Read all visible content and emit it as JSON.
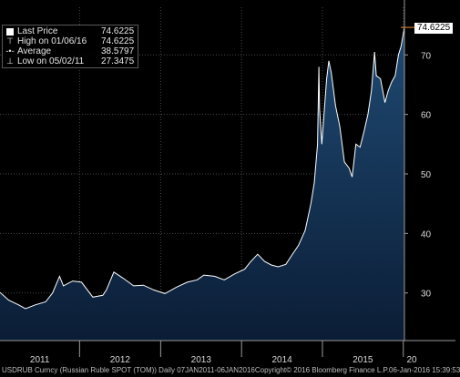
{
  "chart_data": {
    "type": "area",
    "xlim": [
      "2011-01-07",
      "2016-01-06"
    ],
    "ylim": [
      22,
      78
    ],
    "y_ticks": [
      30,
      40,
      50,
      60,
      70
    ],
    "x_tick_labels": [
      "2011",
      "2012",
      "2013",
      "2014",
      "2015",
      "20"
    ],
    "grid": true,
    "colors": {
      "fill_top": "#1f4a73",
      "fill_bottom": "#0b1d36",
      "line": "#ffffff",
      "last_price": "#f28c28",
      "grid": "#4a4a4a"
    },
    "series": [
      {
        "name": "Last Price",
        "x": [
          "2011-01-07",
          "2011-02-15",
          "2011-04-01",
          "2011-05-02",
          "2011-06-15",
          "2011-08-01",
          "2011-09-01",
          "2011-10-03",
          "2011-10-20",
          "2011-12-01",
          "2012-01-10",
          "2012-03-01",
          "2012-04-15",
          "2012-05-01",
          "2012-06-04",
          "2012-07-15",
          "2012-09-01",
          "2012-10-15",
          "2012-12-01",
          "2013-01-20",
          "2013-03-15",
          "2013-05-01",
          "2013-06-15",
          "2013-07-15",
          "2013-09-01",
          "2013-10-15",
          "2013-12-01",
          "2014-01-15",
          "2014-02-10",
          "2014-03-15",
          "2014-04-15",
          "2014-05-15",
          "2014-06-15",
          "2014-07-20",
          "2014-08-15",
          "2014-09-15",
          "2014-10-15",
          "2014-11-10",
          "2014-11-25",
          "2014-12-10",
          "2014-12-16",
          "2014-12-19",
          "2014-12-29",
          "2015-01-20",
          "2015-01-30",
          "2015-02-10",
          "2015-03-01",
          "2015-03-20",
          "2015-04-10",
          "2015-05-01",
          "2015-05-15",
          "2015-06-01",
          "2015-06-20",
          "2015-07-10",
          "2015-07-25",
          "2015-08-10",
          "2015-08-24",
          "2015-09-01",
          "2015-09-20",
          "2015-10-10",
          "2015-10-25",
          "2015-11-10",
          "2015-11-25",
          "2015-12-10",
          "2015-12-22",
          "2016-01-06"
        ],
        "y": [
          30.1,
          28.8,
          28.0,
          27.35,
          28.0,
          28.5,
          30.0,
          32.8,
          31.2,
          32.0,
          31.8,
          29.3,
          29.6,
          30.5,
          33.5,
          32.5,
          31.2,
          31.3,
          30.5,
          29.9,
          31.0,
          31.8,
          32.2,
          33.0,
          32.8,
          32.2,
          33.2,
          34.0,
          35.2,
          36.5,
          35.3,
          34.7,
          34.4,
          34.8,
          36.3,
          38.0,
          40.5,
          45.0,
          48.5,
          55.0,
          68.0,
          61.0,
          55.0,
          66.0,
          69.0,
          67.0,
          61.5,
          58.0,
          52.0,
          51.0,
          49.5,
          55.0,
          54.5,
          57.5,
          60.0,
          64.0,
          70.5,
          66.5,
          66.0,
          62.0,
          64.0,
          65.5,
          66.5,
          70.0,
          71.5,
          74.6225
        ]
      }
    ],
    "legend": [
      {
        "label": "Last Price",
        "value": "74.6225",
        "icon": "square-icon"
      },
      {
        "label": "High on 01/06/16",
        "value": "74.6225",
        "icon": "high-marker-icon"
      },
      {
        "label": "Average",
        "value": "38.5797",
        "icon": "average-marker-icon"
      },
      {
        "label": "Low on 05/02/11",
        "value": "27.3475",
        "icon": "low-marker-icon"
      }
    ],
    "legend_position": "top-left",
    "last_price_tag": "74.6225"
  },
  "footer": {
    "left": "USDRUB Curncy (Russian Ruble SPOT (TOM))  Daily 07JAN2011-06JAN2016",
    "middle": "Copyright© 2016 Bloomberg Finance L.P.",
    "right": "06-Jan-2016 15:39:53"
  }
}
